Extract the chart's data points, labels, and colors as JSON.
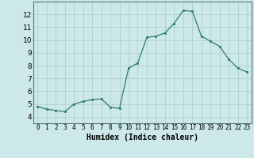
{
  "x": [
    0,
    1,
    2,
    3,
    4,
    5,
    6,
    7,
    8,
    9,
    10,
    11,
    12,
    13,
    14,
    15,
    16,
    17,
    18,
    19,
    20,
    21,
    22,
    23
  ],
  "y": [
    4.8,
    4.6,
    4.5,
    4.4,
    5.0,
    5.2,
    5.35,
    5.4,
    4.75,
    4.65,
    7.8,
    8.2,
    10.2,
    10.3,
    10.55,
    11.3,
    12.3,
    12.25,
    10.3,
    9.9,
    9.5,
    8.5,
    7.8,
    7.5
  ],
  "xlabel": "Humidex (Indice chaleur)",
  "ylim": [
    3.5,
    13.0
  ],
  "xlim": [
    -0.5,
    23.5
  ],
  "yticks": [
    4,
    5,
    6,
    7,
    8,
    9,
    10,
    11,
    12
  ],
  "xtick_labels": [
    "0",
    "1",
    "2",
    "3",
    "4",
    "5",
    "6",
    "7",
    "8",
    "9",
    "10",
    "11",
    "12",
    "13",
    "14",
    "15",
    "16",
    "17",
    "18",
    "19",
    "20",
    "21",
    "22",
    "23"
  ],
  "line_color": "#2e7d6e",
  "marker_color": "#2e7d6e",
  "bg_color": "#cce8e8",
  "grid_color": "#aacccc",
  "axis_bg": "#cce8e8",
  "tick_label_fontsize": 5.5,
  "ytick_label_fontsize": 6.5,
  "xlabel_fontsize": 7.0
}
